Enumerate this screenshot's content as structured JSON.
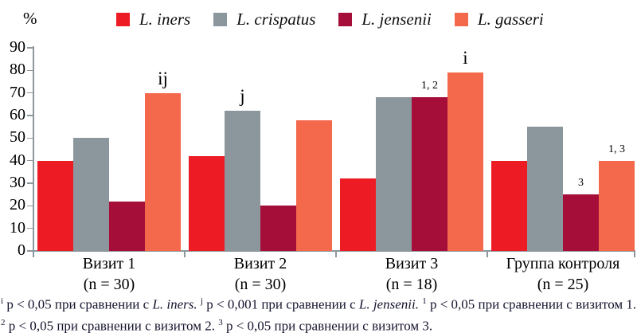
{
  "unit_label": "%",
  "chart_data": {
    "type": "bar",
    "title": "",
    "ylabel": "%",
    "ylim": [
      0,
      90
    ],
    "yticks": [
      0,
      10,
      20,
      30,
      40,
      50,
      60,
      70,
      80,
      90
    ],
    "grid": false,
    "legend_position": "top",
    "categories": [
      {
        "label": "Визит 1",
        "n": "(n = 30)"
      },
      {
        "label": "Визит 2",
        "n": "(n = 30)"
      },
      {
        "label": "Визит 3",
        "n": "(n = 18)"
      },
      {
        "label": "Группа контроля",
        "n": "(n = 25)"
      }
    ],
    "series": [
      {
        "name": "L. iners",
        "color": "#ED1C24",
        "values": [
          40,
          42,
          32,
          40
        ]
      },
      {
        "name": "L. crispatus",
        "color": "#8C979D",
        "values": [
          50,
          62,
          68,
          55
        ]
      },
      {
        "name": "L. jensenii",
        "color": "#A50E38",
        "values": [
          22,
          20,
          68,
          25
        ]
      },
      {
        "name": "L. gasseri",
        "color": "#F4684B",
        "values": [
          70,
          58,
          79,
          40
        ]
      }
    ],
    "annotations": [
      {
        "group": 0,
        "series": 3,
        "text": "ij",
        "size": "large"
      },
      {
        "group": 1,
        "series": 1,
        "text": "j",
        "size": "large"
      },
      {
        "group": 2,
        "series": 2,
        "text": "1, 2",
        "size": "small"
      },
      {
        "group": 2,
        "series": 3,
        "text": "i",
        "size": "large"
      },
      {
        "group": 3,
        "series": 2,
        "text": "3",
        "size": "small"
      },
      {
        "group": 3,
        "series": 3,
        "text": "1, 3",
        "size": "small"
      }
    ]
  },
  "footnote": {
    "segments": [
      {
        "t": "sup",
        "v": "i"
      },
      {
        "t": "text",
        "v": " p < 0,05 при сравнении с "
      },
      {
        "t": "italic",
        "v": "L. iners."
      },
      {
        "t": "text",
        "v": " "
      },
      {
        "t": "sup",
        "v": "j"
      },
      {
        "t": "text",
        "v": " p < 0,001 при сравнении с "
      },
      {
        "t": "italic",
        "v": "L. jensenii."
      },
      {
        "t": "text",
        "v": " "
      },
      {
        "t": "sup",
        "v": "1"
      },
      {
        "t": "text",
        "v": " p < 0,05 при сравнении с визитом 1. "
      },
      {
        "t": "sup",
        "v": "2"
      },
      {
        "t": "text",
        "v": " p < 0,05 при сравнении с визитом 2. "
      },
      {
        "t": "sup",
        "v": "3"
      },
      {
        "t": "text",
        "v": " p < 0,05 при сравнении с визитом 3."
      }
    ]
  }
}
